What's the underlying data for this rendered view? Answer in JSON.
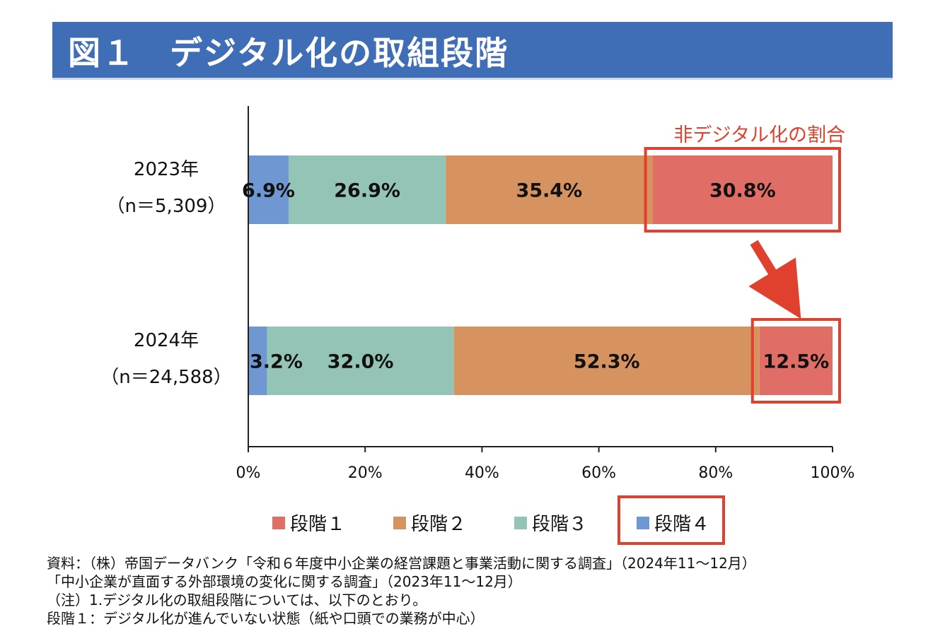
{
  "title": "図１　デジタル化の取組段階",
  "annotation": {
    "label": "非デジタル化の割合",
    "highlight_color": "#e0412f"
  },
  "colors": {
    "title_banner": "#3f6db6",
    "stage4": "#6f97d1",
    "stage3": "#93c4b5",
    "stage2": "#d69360",
    "stage1": "#e16d67"
  },
  "chart_data": {
    "type": "bar",
    "orientation": "horizontal",
    "stacked": true,
    "categories": [
      {
        "label": "2023年",
        "sublabel": "（n＝5,309）"
      },
      {
        "label": "2024年",
        "sublabel": "（n＝24,588）"
      }
    ],
    "series": [
      {
        "name": "段階４",
        "color": "#6f97d1",
        "values": [
          6.9,
          3.2
        ],
        "labels": [
          "6.9%",
          "3.2%"
        ]
      },
      {
        "name": "段階３",
        "color": "#93c4b5",
        "values": [
          26.9,
          32.0
        ],
        "labels": [
          "26.9%",
          "32.0%"
        ]
      },
      {
        "name": "段階２",
        "color": "#d69360",
        "values": [
          35.4,
          52.3
        ],
        "labels": [
          "35.4%",
          "52.3%"
        ]
      },
      {
        "name": "段階１",
        "color": "#e16d67",
        "values": [
          30.8,
          12.5
        ],
        "labels": [
          "30.8%",
          "12.5%"
        ]
      }
    ],
    "xlim": [
      0,
      100
    ],
    "x_ticks": [
      "0%",
      "20%",
      "40%",
      "60%",
      "80%",
      "100%"
    ],
    "grid": false,
    "legend_position": "bottom",
    "highlighted_series": "段階１"
  },
  "notes": [
    "資料：（株）帝国データバンク「令和６年度中小企業の経営課題と事業活動に関する調査」（2024年11～12月）",
    "「中小企業が直面する外部環境の変化に関する調査」（2023年11～12月）",
    "（注）1.デジタル化の取組段階については、以下のとおり。",
    "段階１：デジタル化が進んでいない状態（紙や口頭での業務が中心）"
  ]
}
